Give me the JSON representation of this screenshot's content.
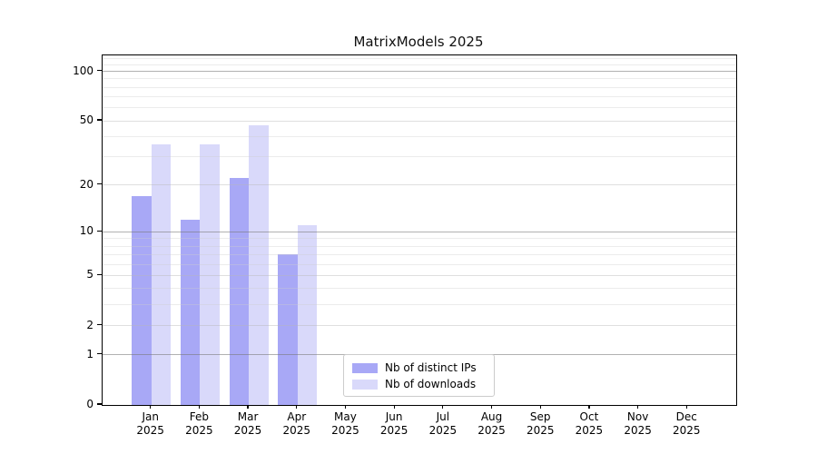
{
  "chart_data": {
    "type": "bar",
    "title": "MatrixModels 2025",
    "categories": [
      "Jan",
      "Feb",
      "Mar",
      "Apr",
      "May",
      "Jun",
      "Jul",
      "Aug",
      "Sep",
      "Oct",
      "Nov",
      "Dec"
    ],
    "x_year_label": "2025",
    "series": [
      {
        "name": "Nb of distinct IPs",
        "color": "#a8a8f6",
        "values": [
          17,
          12,
          22,
          7,
          null,
          null,
          null,
          null,
          null,
          null,
          null,
          null
        ]
      },
      {
        "name": "Nb of downloads",
        "color": "#d9d9fa",
        "values": [
          36,
          36,
          47,
          11,
          null,
          null,
          null,
          null,
          null,
          null,
          null,
          null
        ]
      }
    ],
    "yscale": "log1p",
    "ylim": [
      0,
      125
    ],
    "y_ticks": [
      0,
      1,
      2,
      5,
      10,
      20,
      50,
      100
    ],
    "y_minor_gridlines": [
      3,
      4,
      6,
      7,
      8,
      9,
      30,
      40,
      60,
      70,
      80,
      90,
      110,
      120
    ],
    "grid": true,
    "legend_position": "lower center"
  }
}
